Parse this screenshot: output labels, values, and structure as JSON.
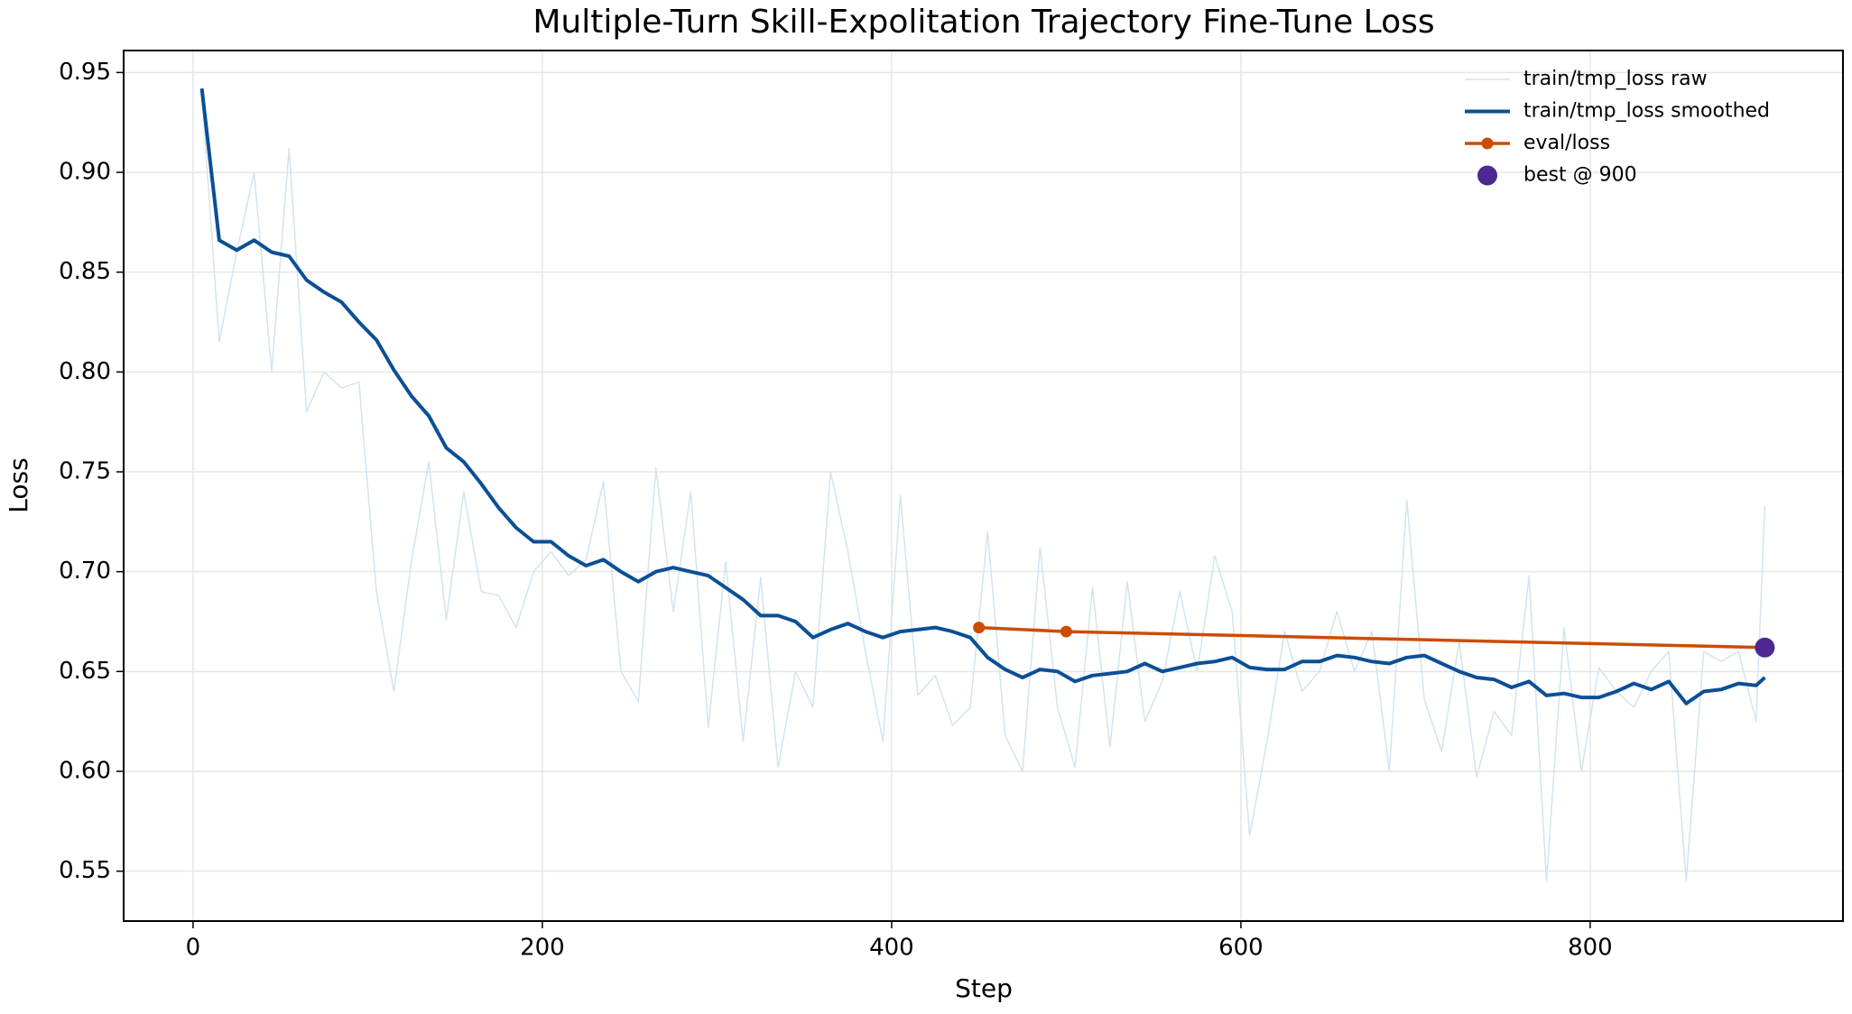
{
  "chart_data": {
    "type": "line",
    "title": "Multiple-Turn Skill-Expolitation Trajectory Fine-Tune Loss",
    "xlabel": "Step",
    "ylabel": "Loss",
    "xlim": [
      -39.75,
      944.75
    ],
    "ylim": [
      0.525,
      0.961
    ],
    "xticks": [
      0,
      200,
      400,
      600,
      800
    ],
    "yticks": [
      0.55,
      {
        "value": 0.6,
        "label": "0.60"
      },
      0.65,
      {
        "value": 0.7,
        "label": "0.70"
      },
      0.75,
      {
        "value": 0.8,
        "label": "0.80"
      },
      0.85,
      {
        "value": 0.9,
        "label": "0.90"
      },
      0.95
    ],
    "grid": true,
    "legend": "upper right",
    "series": [
      {
        "name": "train/tmp_loss raw",
        "color": "#d3e4ee",
        "x": [
          5,
          15,
          25,
          35,
          45,
          55,
          65,
          75,
          85,
          95,
          105,
          115,
          125,
          135,
          145,
          155,
          165,
          175,
          185,
          195,
          205,
          215,
          225,
          235,
          245,
          255,
          265,
          275,
          285,
          295,
          305,
          315,
          325,
          335,
          345,
          355,
          365,
          375,
          385,
          395,
          405,
          415,
          425,
          435,
          445,
          455,
          465,
          475,
          485,
          495,
          505,
          515,
          525,
          535,
          545,
          555,
          565,
          575,
          585,
          595,
          605,
          615,
          625,
          635,
          645,
          655,
          665,
          675,
          685,
          695,
          705,
          715,
          725,
          735,
          745,
          755,
          765,
          775,
          785,
          795,
          805,
          815,
          825,
          835,
          845,
          855,
          865,
          875,
          885,
          895,
          900
        ],
        "values": [
          0.94,
          0.815,
          0.86,
          0.9,
          0.8,
          0.912,
          0.78,
          0.8,
          0.792,
          0.795,
          0.69,
          0.64,
          0.705,
          0.755,
          0.676,
          0.74,
          0.69,
          0.688,
          0.672,
          0.7,
          0.71,
          0.698,
          0.706,
          0.745,
          0.65,
          0.635,
          0.752,
          0.68,
          0.74,
          0.622,
          0.705,
          0.615,
          0.697,
          0.602,
          0.65,
          0.632,
          0.75,
          0.71,
          0.66,
          0.615,
          0.738,
          0.638,
          0.648,
          0.623,
          0.632,
          0.72,
          0.618,
          0.6,
          0.712,
          0.632,
          0.602,
          0.692,
          0.612,
          0.695,
          0.625,
          0.645,
          0.69,
          0.65,
          0.708,
          0.68,
          0.568,
          0.615,
          0.67,
          0.64,
          0.65,
          0.68,
          0.65,
          0.67,
          0.6,
          0.736,
          0.636,
          0.61,
          0.665,
          0.597,
          0.63,
          0.618,
          0.698,
          0.545,
          0.672,
          0.6,
          0.652,
          0.64,
          0.632,
          0.65,
          0.66,
          0.545,
          0.66,
          0.655,
          0.66,
          0.625,
          0.733
        ]
      },
      {
        "name": "train/tmp_loss smoothed",
        "color": "#0b4f96",
        "x": [
          5,
          15,
          25,
          35,
          45,
          55,
          65,
          75,
          85,
          95,
          105,
          115,
          125,
          135,
          145,
          155,
          165,
          175,
          185,
          195,
          205,
          215,
          225,
          235,
          245,
          255,
          265,
          275,
          285,
          295,
          305,
          315,
          325,
          335,
          345,
          355,
          365,
          375,
          385,
          395,
          405,
          415,
          425,
          435,
          445,
          455,
          465,
          475,
          485,
          495,
          505,
          515,
          525,
          535,
          545,
          555,
          565,
          575,
          585,
          595,
          605,
          615,
          625,
          635,
          645,
          655,
          665,
          675,
          685,
          695,
          705,
          715,
          725,
          735,
          745,
          755,
          765,
          775,
          785,
          795,
          805,
          815,
          825,
          835,
          845,
          855,
          865,
          875,
          885,
          895,
          900
        ],
        "values": [
          0.942,
          0.866,
          0.861,
          0.866,
          0.86,
          0.858,
          0.846,
          0.84,
          0.835,
          0.825,
          0.816,
          0.801,
          0.788,
          0.778,
          0.762,
          0.755,
          0.744,
          0.732,
          0.722,
          0.715,
          0.715,
          0.708,
          0.703,
          0.706,
          0.7,
          0.695,
          0.7,
          0.702,
          0.7,
          0.698,
          0.692,
          0.686,
          0.678,
          0.678,
          0.675,
          0.667,
          0.671,
          0.674,
          0.67,
          0.667,
          0.67,
          0.671,
          0.672,
          0.67,
          0.667,
          0.657,
          0.651,
          0.647,
          0.651,
          0.65,
          0.645,
          0.648,
          0.649,
          0.65,
          0.654,
          0.65,
          0.652,
          0.654,
          0.655,
          0.657,
          0.652,
          0.651,
          0.651,
          0.655,
          0.655,
          0.658,
          0.657,
          0.655,
          0.654,
          0.657,
          0.658,
          0.654,
          0.65,
          0.647,
          0.646,
          0.642,
          0.645,
          0.638,
          0.639,
          0.637,
          0.637,
          0.64,
          0.644,
          0.641,
          0.645,
          0.634,
          0.64,
          0.641,
          0.644,
          0.643,
          0.647
        ]
      },
      {
        "name": "eval/loss",
        "color": "#cc4c02",
        "marker": true,
        "x": [
          450,
          500,
          900
        ],
        "values": [
          0.672,
          0.67,
          0.662
        ]
      },
      {
        "name": "best @ 900",
        "color": "#4b2991",
        "type": "scatter",
        "x": [
          900
        ],
        "values": [
          0.662
        ]
      }
    ]
  }
}
